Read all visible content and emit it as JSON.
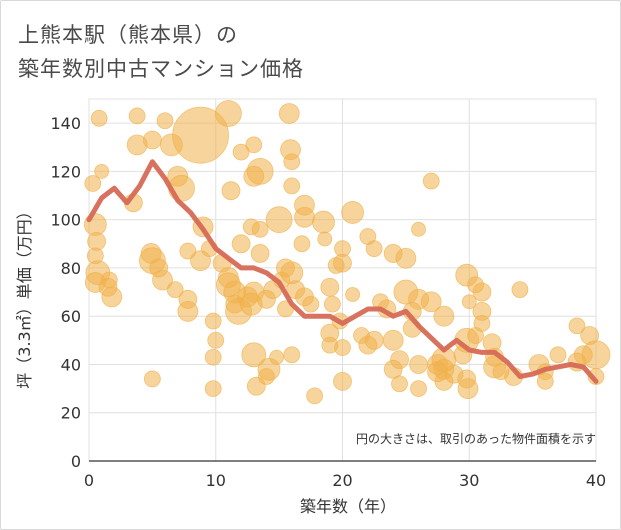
{
  "title_line1": "上熊本駅（熊本県）の",
  "title_line2": "築年数別中古マンション価格",
  "chart_data": {
    "type": "scatter",
    "xlabel": "築年数（年）",
    "ylabel": "坪（3.3㎡）単価（万円）",
    "xlim": [
      0,
      40
    ],
    "ylim": [
      0,
      150
    ],
    "xticks": [
      0,
      10,
      20,
      30,
      40
    ],
    "yticks": [
      0,
      20,
      40,
      60,
      80,
      100,
      120,
      140
    ],
    "grid": true,
    "note": "円の大きさは、取引のあった物件面積を示す",
    "colors": {
      "bubble": "#f0b04a",
      "line": "#d66a55",
      "grid": "#e0e0e0"
    },
    "series": [
      {
        "type": "bubble",
        "points": [
          {
            "x": 0.3,
            "y": 115,
            "s": 8
          },
          {
            "x": 0.5,
            "y": 98,
            "s": 11
          },
          {
            "x": 0.6,
            "y": 91,
            "s": 9
          },
          {
            "x": 0.5,
            "y": 85,
            "s": 8
          },
          {
            "x": 0.7,
            "y": 78,
            "s": 12
          },
          {
            "x": 0.5,
            "y": 74,
            "s": 10
          },
          {
            "x": 0.8,
            "y": 142,
            "s": 8
          },
          {
            "x": 1.0,
            "y": 120,
            "s": 7
          },
          {
            "x": 1.5,
            "y": 72,
            "s": 9
          },
          {
            "x": 1.8,
            "y": 68,
            "s": 10
          },
          {
            "x": 1.6,
            "y": 75,
            "s": 8
          },
          {
            "x": 3.8,
            "y": 143,
            "s": 8
          },
          {
            "x": 3.8,
            "y": 131,
            "s": 10
          },
          {
            "x": 3.5,
            "y": 107,
            "s": 9
          },
          {
            "x": 5.0,
            "y": 133,
            "s": 9
          },
          {
            "x": 4.9,
            "y": 86,
            "s": 10
          },
          {
            "x": 5.0,
            "y": 83,
            "s": 13
          },
          {
            "x": 5.5,
            "y": 80,
            "s": 9
          },
          {
            "x": 5.8,
            "y": 75,
            "s": 10
          },
          {
            "x": 5.0,
            "y": 34,
            "s": 8
          },
          {
            "x": 6.0,
            "y": 141,
            "s": 8
          },
          {
            "x": 6.5,
            "y": 131,
            "s": 11
          },
          {
            "x": 7.0,
            "y": 118,
            "s": 10
          },
          {
            "x": 7.3,
            "y": 113,
            "s": 13
          },
          {
            "x": 6.8,
            "y": 71,
            "s": 8
          },
          {
            "x": 7.8,
            "y": 67,
            "s": 9
          },
          {
            "x": 7.8,
            "y": 62,
            "s": 10
          },
          {
            "x": 7.8,
            "y": 87,
            "s": 8
          },
          {
            "x": 8.8,
            "y": 135,
            "s": 28
          },
          {
            "x": 9.0,
            "y": 97,
            "s": 10
          },
          {
            "x": 8.8,
            "y": 83,
            "s": 10
          },
          {
            "x": 9.5,
            "y": 88,
            "s": 8
          },
          {
            "x": 9.8,
            "y": 58,
            "s": 8
          },
          {
            "x": 10.0,
            "y": 50,
            "s": 8
          },
          {
            "x": 9.8,
            "y": 43,
            "s": 8
          },
          {
            "x": 9.8,
            "y": 30,
            "s": 8
          },
          {
            "x": 10.5,
            "y": 82,
            "s": 9
          },
          {
            "x": 11.0,
            "y": 144,
            "s": 13
          },
          {
            "x": 11.2,
            "y": 112,
            "s": 9
          },
          {
            "x": 11.0,
            "y": 76,
            "s": 10
          },
          {
            "x": 11.0,
            "y": 73,
            "s": 12
          },
          {
            "x": 11.5,
            "y": 70,
            "s": 11
          },
          {
            "x": 11.5,
            "y": 65,
            "s": 9
          },
          {
            "x": 11.8,
            "y": 62,
            "s": 13
          },
          {
            "x": 12.0,
            "y": 128,
            "s": 8
          },
          {
            "x": 12.0,
            "y": 90,
            "s": 9
          },
          {
            "x": 12.5,
            "y": 68,
            "s": 10
          },
          {
            "x": 12.8,
            "y": 65,
            "s": 11
          },
          {
            "x": 13.0,
            "y": 131,
            "s": 8
          },
          {
            "x": 13.5,
            "y": 120,
            "s": 13
          },
          {
            "x": 13.0,
            "y": 118,
            "s": 10
          },
          {
            "x": 13.5,
            "y": 96,
            "s": 8
          },
          {
            "x": 13.5,
            "y": 86,
            "s": 9
          },
          {
            "x": 12.8,
            "y": 97,
            "s": 8
          },
          {
            "x": 13.0,
            "y": 70,
            "s": 10
          },
          {
            "x": 13.0,
            "y": 44,
            "s": 12
          },
          {
            "x": 13.2,
            "y": 31,
            "s": 9
          },
          {
            "x": 14.0,
            "y": 67,
            "s": 9
          },
          {
            "x": 14.2,
            "y": 38,
            "s": 11
          },
          {
            "x": 14.0,
            "y": 35,
            "s": 8
          },
          {
            "x": 14.5,
            "y": 71,
            "s": 9
          },
          {
            "x": 15.0,
            "y": 100,
            "s": 13
          },
          {
            "x": 15.5,
            "y": 80,
            "s": 9
          },
          {
            "x": 15.2,
            "y": 75,
            "s": 8
          },
          {
            "x": 15.8,
            "y": 144,
            "s": 10
          },
          {
            "x": 15.9,
            "y": 129,
            "s": 10
          },
          {
            "x": 16.0,
            "y": 124,
            "s": 8
          },
          {
            "x": 16.0,
            "y": 114,
            "s": 8
          },
          {
            "x": 16.0,
            "y": 78,
            "s": 11
          },
          {
            "x": 16.3,
            "y": 71,
            "s": 9
          },
          {
            "x": 15.5,
            "y": 63,
            "s": 8
          },
          {
            "x": 16.0,
            "y": 44,
            "s": 8
          },
          {
            "x": 14.8,
            "y": 43,
            "s": 7
          },
          {
            "x": 17.0,
            "y": 106,
            "s": 10
          },
          {
            "x": 17.0,
            "y": 101,
            "s": 10
          },
          {
            "x": 16.8,
            "y": 90,
            "s": 8
          },
          {
            "x": 17.0,
            "y": 68,
            "s": 9
          },
          {
            "x": 17.5,
            "y": 65,
            "s": 8
          },
          {
            "x": 17.8,
            "y": 27,
            "s": 8
          },
          {
            "x": 18.5,
            "y": 99,
            "s": 11
          },
          {
            "x": 18.6,
            "y": 92,
            "s": 7
          },
          {
            "x": 19.5,
            "y": 81,
            "s": 8
          },
          {
            "x": 19.0,
            "y": 72,
            "s": 9
          },
          {
            "x": 19.2,
            "y": 65,
            "s": 8
          },
          {
            "x": 19.0,
            "y": 53,
            "s": 9
          },
          {
            "x": 19.0,
            "y": 48,
            "s": 8
          },
          {
            "x": 20.0,
            "y": 88,
            "s": 8
          },
          {
            "x": 20.0,
            "y": 82,
            "s": 9
          },
          {
            "x": 19.8,
            "y": 58,
            "s": 8
          },
          {
            "x": 20.0,
            "y": 47,
            "s": 8
          },
          {
            "x": 20.0,
            "y": 33,
            "s": 9
          },
          {
            "x": 20.8,
            "y": 103,
            "s": 11
          },
          {
            "x": 20.8,
            "y": 69,
            "s": 7
          },
          {
            "x": 21.5,
            "y": 52,
            "s": 8
          },
          {
            "x": 22.0,
            "y": 93,
            "s": 8
          },
          {
            "x": 22.5,
            "y": 88,
            "s": 8
          },
          {
            "x": 22.0,
            "y": 48,
            "s": 9
          },
          {
            "x": 22.5,
            "y": 50,
            "s": 9
          },
          {
            "x": 23.0,
            "y": 66,
            "s": 8
          },
          {
            "x": 23.5,
            "y": 63,
            "s": 9
          },
          {
            "x": 24.0,
            "y": 86,
            "s": 9
          },
          {
            "x": 24.0,
            "y": 50,
            "s": 10
          },
          {
            "x": 24.5,
            "y": 42,
            "s": 9
          },
          {
            "x": 24.0,
            "y": 38,
            "s": 9
          },
          {
            "x": 24.5,
            "y": 32,
            "s": 8
          },
          {
            "x": 25.0,
            "y": 84,
            "s": 10
          },
          {
            "x": 25.0,
            "y": 70,
            "s": 12
          },
          {
            "x": 25.5,
            "y": 62,
            "s": 9
          },
          {
            "x": 25.5,
            "y": 55,
            "s": 9
          },
          {
            "x": 26.0,
            "y": 96,
            "s": 7
          },
          {
            "x": 26.0,
            "y": 67,
            "s": 10
          },
          {
            "x": 26.0,
            "y": 40,
            "s": 9
          },
          {
            "x": 26.0,
            "y": 30,
            "s": 8
          },
          {
            "x": 27.0,
            "y": 116,
            "s": 8
          },
          {
            "x": 27.0,
            "y": 66,
            "s": 10
          },
          {
            "x": 27.5,
            "y": 40,
            "s": 10
          },
          {
            "x": 27.5,
            "y": 37,
            "s": 10
          },
          {
            "x": 28.0,
            "y": 60,
            "s": 10
          },
          {
            "x": 28.0,
            "y": 42,
            "s": 12
          },
          {
            "x": 28.0,
            "y": 38,
            "s": 10
          },
          {
            "x": 28.0,
            "y": 33,
            "s": 9
          },
          {
            "x": 28.8,
            "y": 36,
            "s": 9
          },
          {
            "x": 29.5,
            "y": 44,
            "s": 9
          },
          {
            "x": 29.8,
            "y": 77,
            "s": 11
          },
          {
            "x": 29.8,
            "y": 50,
            "s": 12
          },
          {
            "x": 29.8,
            "y": 34,
            "s": 9
          },
          {
            "x": 29.9,
            "y": 30,
            "s": 10
          },
          {
            "x": 30.0,
            "y": 66,
            "s": 7
          },
          {
            "x": 30.5,
            "y": 73,
            "s": 8
          },
          {
            "x": 30.5,
            "y": 52,
            "s": 8
          },
          {
            "x": 31.0,
            "y": 70,
            "s": 9
          },
          {
            "x": 31.0,
            "y": 62,
            "s": 9
          },
          {
            "x": 31.0,
            "y": 57,
            "s": 8
          },
          {
            "x": 31.8,
            "y": 49,
            "s": 9
          },
          {
            "x": 32.0,
            "y": 43,
            "s": 9
          },
          {
            "x": 32.0,
            "y": 39,
            "s": 11
          },
          {
            "x": 32.5,
            "y": 37,
            "s": 8
          },
          {
            "x": 33.5,
            "y": 35,
            "s": 9
          },
          {
            "x": 34.0,
            "y": 71,
            "s": 8
          },
          {
            "x": 35.5,
            "y": 40,
            "s": 10
          },
          {
            "x": 36.0,
            "y": 37,
            "s": 8
          },
          {
            "x": 36.0,
            "y": 33,
            "s": 8
          },
          {
            "x": 37.0,
            "y": 44,
            "s": 8
          },
          {
            "x": 38.5,
            "y": 56,
            "s": 8
          },
          {
            "x": 38.5,
            "y": 41,
            "s": 9
          },
          {
            "x": 39.0,
            "y": 44,
            "s": 9
          },
          {
            "x": 39.5,
            "y": 52,
            "s": 9
          },
          {
            "x": 40.0,
            "y": 44,
            "s": 14
          },
          {
            "x": 40.0,
            "y": 35,
            "s": 8
          }
        ]
      },
      {
        "type": "line",
        "x": [
          0,
          1,
          2,
          3,
          4,
          5,
          6,
          7,
          8,
          9,
          10,
          11,
          12,
          13,
          14,
          15,
          16,
          17,
          18,
          19,
          20,
          21,
          22,
          23,
          24,
          25,
          26,
          27,
          28,
          29,
          30,
          31,
          32,
          33,
          34,
          35,
          36,
          37,
          38,
          39,
          40
        ],
        "y": [
          100,
          109,
          113,
          107,
          114,
          124,
          117,
          108,
          103,
          96,
          88,
          84,
          80,
          80,
          78,
          74,
          65,
          60,
          60,
          60,
          57,
          60,
          63,
          63,
          60,
          62,
          56,
          51,
          46,
          50,
          46,
          45,
          45,
          41,
          35,
          36,
          38,
          39,
          40,
          39,
          33
        ]
      }
    ]
  }
}
